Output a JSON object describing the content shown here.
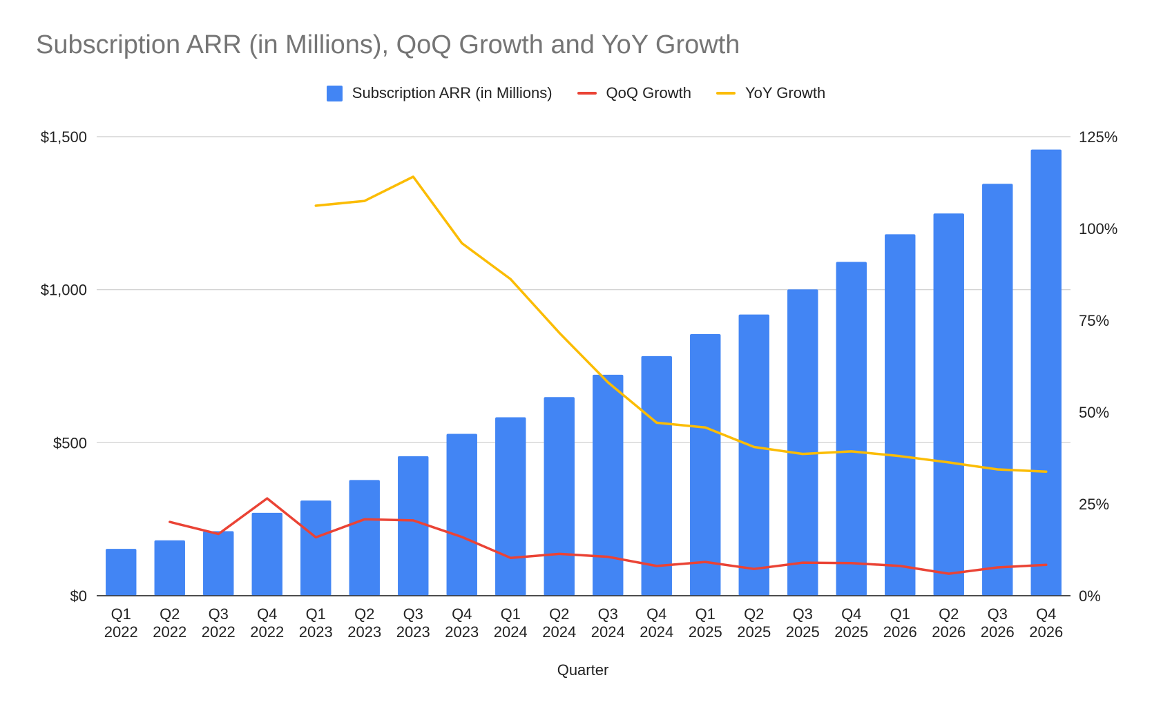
{
  "chart_data": {
    "type": "bar",
    "title": "Subscription ARR (in Millions), QoQ Growth and YoY Growth",
    "xlabel": "Quarter",
    "ylabel": "",
    "y2label": "",
    "ylim": [
      0,
      1500
    ],
    "y2lim": [
      0,
      125
    ],
    "y_ticks": [
      "$0",
      "$500",
      "$1,000",
      "$1,500"
    ],
    "y_tick_values": [
      0,
      500,
      1000,
      1500
    ],
    "y2_ticks": [
      "0%",
      "25%",
      "50%",
      "75%",
      "100%",
      "125%"
    ],
    "y2_tick_values": [
      0,
      25,
      50,
      75,
      100,
      125
    ],
    "grid": true,
    "legend_position": "top",
    "categories": [
      [
        "Q1",
        "2022"
      ],
      [
        "Q2",
        "2022"
      ],
      [
        "Q3",
        "2022"
      ],
      [
        "Q4",
        "2022"
      ],
      [
        "Q1",
        "2023"
      ],
      [
        "Q2",
        "2023"
      ],
      [
        "Q3",
        "2023"
      ],
      [
        "Q4",
        "2023"
      ],
      [
        "Q1",
        "2024"
      ],
      [
        "Q2",
        "2024"
      ],
      [
        "Q3",
        "2024"
      ],
      [
        "Q4",
        "2024"
      ],
      [
        "Q1",
        "2025"
      ],
      [
        "Q2",
        "2025"
      ],
      [
        "Q3",
        "2025"
      ],
      [
        "Q4",
        "2025"
      ],
      [
        "Q1",
        "2026"
      ],
      [
        "Q2",
        "2026"
      ],
      [
        "Q3",
        "2026"
      ],
      [
        "Q4",
        "2026"
      ]
    ],
    "series": [
      {
        "name": "Subscription ARR (in Millions)",
        "type": "bar",
        "axis": "left",
        "color": "#4285F4",
        "values": [
          153,
          181,
          211,
          271,
          311,
          378,
          456,
          529,
          583,
          649,
          722,
          783,
          855,
          919,
          1001,
          1091,
          1181,
          1249,
          1346,
          1458
        ]
      },
      {
        "name": "QoQ Growth",
        "type": "line",
        "axis": "right",
        "color": "#EA4335",
        "values": [
          null,
          20.1,
          16.8,
          26.5,
          15.9,
          20.8,
          20.5,
          16.0,
          10.3,
          11.4,
          10.6,
          8.1,
          9.2,
          7.3,
          9.0,
          8.9,
          8.1,
          6.0,
          7.7,
          8.4
        ]
      },
      {
        "name": "YoY Growth",
        "type": "line",
        "axis": "right",
        "color": "#FBBC04",
        "values": [
          null,
          null,
          null,
          null,
          106.2,
          107.5,
          114.1,
          96.0,
          86.2,
          71.6,
          58.1,
          47.1,
          45.8,
          40.5,
          38.6,
          39.3,
          38.0,
          36.3,
          34.4,
          33.8
        ]
      }
    ]
  }
}
